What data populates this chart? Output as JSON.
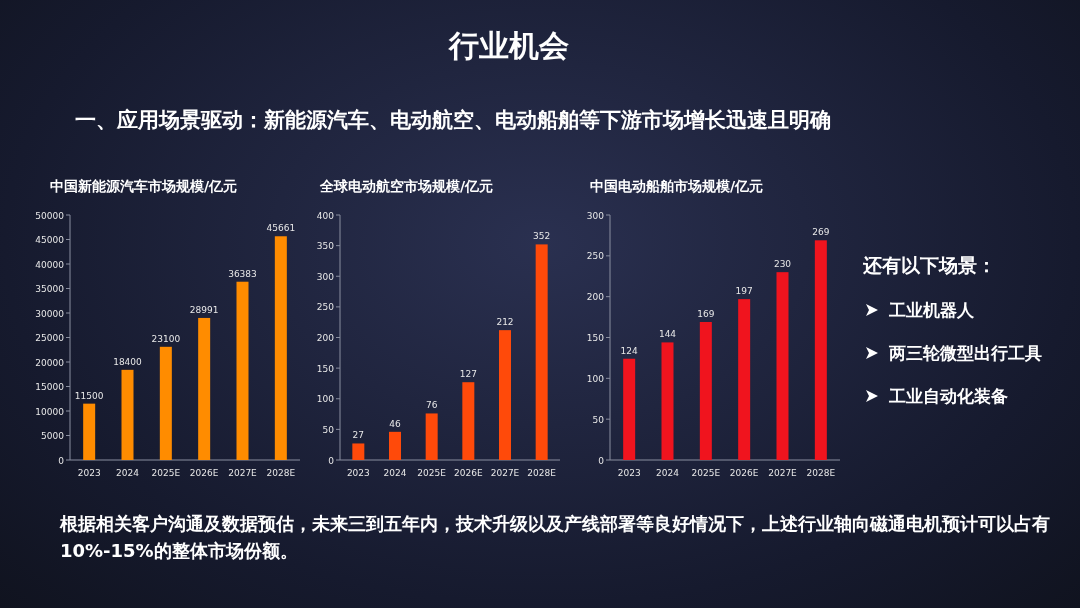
{
  "chart_data": [
    {
      "type": "other",
      "title": "行业机会",
      "subtitle": "一、应用场景驱动：新能源汽车、电动航空、电动船舶等下游市场增长迅速且明确"
    },
    {
      "type": "bar",
      "title": "中国新能源汽车市场规模/亿元",
      "categories": [
        "2023",
        "2024",
        "2025E",
        "2026E",
        "2027E",
        "2028E"
      ],
      "values": [
        11500,
        18400,
        23100,
        28991,
        36383,
        45661
      ],
      "color": "#ff8c00",
      "ylim": [
        0,
        50000
      ],
      "yticks": [
        0,
        5000,
        10000,
        15000,
        20000,
        25000,
        30000,
        35000,
        40000,
        45000,
        50000
      ],
      "data_labels": true
    },
    {
      "type": "bar",
      "title": "全球电动航空市场规模/亿元",
      "categories": [
        "2023",
        "2024",
        "2025E",
        "2026E",
        "2027E",
        "2028E"
      ],
      "values": [
        27,
        46,
        76,
        127,
        212,
        352
      ],
      "color": "#ff4a0a",
      "ylim": [
        0,
        400
      ],
      "yticks": [
        0,
        50,
        100,
        150,
        200,
        250,
        300,
        350,
        400
      ],
      "data_labels": true
    },
    {
      "type": "bar",
      "title": "中国电动船舶市场规模/亿元",
      "categories": [
        "2023",
        "2024",
        "2025E",
        "2026E",
        "2027E",
        "2028E"
      ],
      "values": [
        124,
        144,
        169,
        197,
        230,
        269
      ],
      "color": "#f0141e",
      "ylim": [
        0,
        300
      ],
      "yticks": [
        0,
        50,
        100,
        150,
        200,
        250,
        300
      ],
      "data_labels": true
    },
    {
      "type": "other",
      "title": "还有以下场景：",
      "annotations": [
        "工业机器人",
        "两三轮微型出行工具",
        "工业自动化装备"
      ]
    },
    {
      "type": "other",
      "annotations": [
        "根据相关客户沟通及数据预估，未来三到五年内，技术升级以及产线部署等良好情况下，上述行业轴向磁通电机预计可以占有10%-15%的整体市场份额。"
      ]
    }
  ]
}
